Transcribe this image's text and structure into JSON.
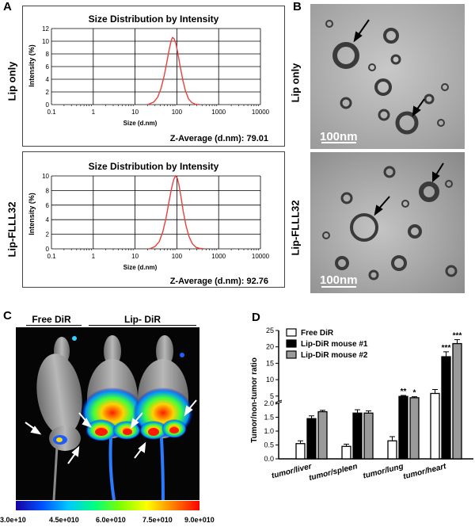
{
  "panels": {
    "A": "A",
    "B": "B",
    "C": "C",
    "D": "D"
  },
  "panelA": {
    "rows": [
      {
        "side_label": "Lip only",
        "title": "Size Distribution  by Intensity",
        "ylabel": "Intensity (%)",
        "xlabel": "Size (d.nm)",
        "zavg": "Z-Average  (d.nm):  79.01"
      },
      {
        "side_label": "Lip-FLLL32",
        "title": "Size Distribution  by Intensity",
        "ylabel": "Intensity (%)",
        "xlabel": "Size (d.nm)",
        "zavg": "Z-Average  (d.nm):  92.76"
      }
    ],
    "chart_data": [
      {
        "type": "line",
        "title": "Size Distribution  by Intensity",
        "xlabel": "Size (d.nm)",
        "ylabel": "Intensity (%)",
        "x_scale": "log",
        "xlim": [
          0.1,
          10000
        ],
        "ylim": [
          0,
          12
        ],
        "x_ticks": [
          "0.1",
          "1",
          "10",
          "100",
          "1000",
          "10000"
        ],
        "y_ticks": [
          "0",
          "2",
          "4",
          "6",
          "8",
          "10",
          "12"
        ],
        "series_color": "#e8413c",
        "x": [
          20,
          28,
          35,
          42,
          50,
          58,
          66,
          74,
          79,
          86,
          95,
          105,
          120,
          140,
          160,
          190,
          230,
          280,
          350
        ],
        "y": [
          0,
          0.4,
          1.2,
          2.6,
          4.6,
          6.8,
          8.8,
          10.2,
          10.6,
          10.4,
          9.6,
          8.2,
          6.0,
          3.8,
          2.2,
          0.9,
          0.3,
          0.05,
          0
        ]
      },
      {
        "type": "line",
        "title": "Size Distribution  by Intensity",
        "xlabel": "Size (d.nm)",
        "ylabel": "Intensity (%)",
        "x_scale": "log",
        "xlim": [
          0.1,
          10000
        ],
        "ylim": [
          0,
          10
        ],
        "x_ticks": [
          "0.1",
          "1",
          "10",
          "100",
          "1000",
          "10000"
        ],
        "y_ticks": [
          "0",
          "2",
          "4",
          "6",
          "8",
          "10"
        ],
        "series_color": "#e8413c",
        "x": [
          22,
          30,
          38,
          46,
          55,
          64,
          74,
          84,
          93,
          102,
          112,
          125,
          142,
          165,
          195,
          235,
          290,
          360,
          450
        ],
        "y": [
          0,
          0.3,
          1.0,
          2.3,
          4.2,
          6.3,
          8.2,
          9.5,
          10.0,
          9.7,
          8.8,
          7.2,
          5.2,
          3.2,
          1.7,
          0.7,
          0.2,
          0.05,
          0
        ]
      }
    ]
  },
  "panelB": {
    "rows": [
      {
        "side_label": "Lip only",
        "scale": "100nm"
      },
      {
        "side_label": "Lip-FLLL32",
        "scale": "100nm"
      }
    ]
  },
  "panelC": {
    "groups": [
      "Free  DiR",
      "Lip- DiR"
    ],
    "colorbar_ticks": [
      "3.0e+10",
      "4.5e+010",
      "6.0e+010",
      "7.5e+010",
      "9.0e+010"
    ]
  },
  "panelD": {
    "chart_data": {
      "type": "bar",
      "ylabel": "Tumor/non-tumor ratio",
      "categories": [
        "tumor/liver",
        "tumor/spleen",
        "tumor/lung",
        "tumor/heart"
      ],
      "y_ticks_lower": [
        "0.0",
        "0.5",
        "1.0",
        "1.5",
        "2.0"
      ],
      "y_ticks_upper": [
        "5",
        "10",
        "15",
        "20",
        "25"
      ],
      "axis_break": [
        2.0,
        3.5
      ],
      "series": [
        {
          "name": "Free DiR",
          "color": "#ffffff",
          "values": [
            0.55,
            0.45,
            0.65,
            5.8
          ],
          "errors": [
            0.1,
            0.08,
            0.15,
            1.2
          ]
        },
        {
          "name": "Lip-DiR mouse #1",
          "color": "#000000",
          "values": [
            1.45,
            1.65,
            4.9,
            17.0
          ],
          "errors": [
            0.1,
            0.12,
            0.3,
            1.5
          ]
        },
        {
          "name": "Lip-DiR mouse #2",
          "color": "#9a9a9a",
          "values": [
            1.7,
            1.65,
            4.5,
            21.0
          ],
          "errors": [
            0.05,
            0.08,
            0.3,
            1.2
          ]
        }
      ],
      "significance": [
        {
          "category": 2,
          "series": 1,
          "label": "**"
        },
        {
          "category": 2,
          "series": 2,
          "label": "*"
        },
        {
          "category": 3,
          "series": 1,
          "label": "***"
        },
        {
          "category": 3,
          "series": 2,
          "label": "***"
        }
      ]
    }
  }
}
